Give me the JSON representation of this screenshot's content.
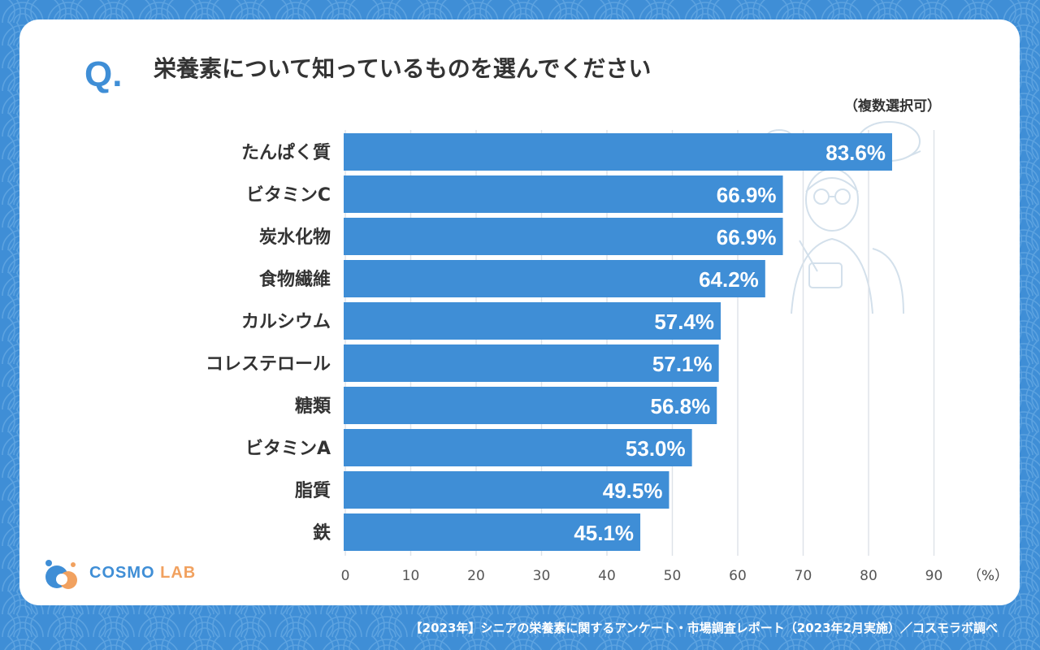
{
  "question": {
    "mark": "Q.",
    "title": "栄養素について知っているものを選んでください",
    "note": "（複数選択可）"
  },
  "chart_data": {
    "type": "bar",
    "orientation": "horizontal",
    "categories": [
      "たんぱく質",
      "ビタミンC",
      "炭水化物",
      "食物繊維",
      "カルシウム",
      "コレステロール",
      "糖類",
      "ビタミンA",
      "脂質",
      "鉄"
    ],
    "values": [
      83.6,
      66.9,
      66.9,
      64.2,
      57.4,
      57.1,
      56.8,
      53.0,
      49.5,
      45.1
    ],
    "value_labels": [
      "83.6%",
      "66.9%",
      "66.9%",
      "64.2%",
      "57.4%",
      "57.1%",
      "56.8%",
      "53.0%",
      "49.5%",
      "45.1%"
    ],
    "xlim": [
      0,
      90
    ],
    "xticks": [
      0,
      10,
      20,
      30,
      40,
      50,
      60,
      70,
      80,
      90
    ],
    "xunit": "（%）",
    "grid": true,
    "bar_color": "#3f8ed6"
  },
  "logo": {
    "part1": "COSMO",
    "part2": "LAB"
  },
  "footer": "【2023年】シニアの栄養素に関するアンケート・市場調査レポート（2023年2月実施）／コスモラボ調べ",
  "colors": {
    "background": "#3f8ed6",
    "bar": "#3f8ed6",
    "logo_accent": "#f1a15f",
    "text": "#333333"
  }
}
